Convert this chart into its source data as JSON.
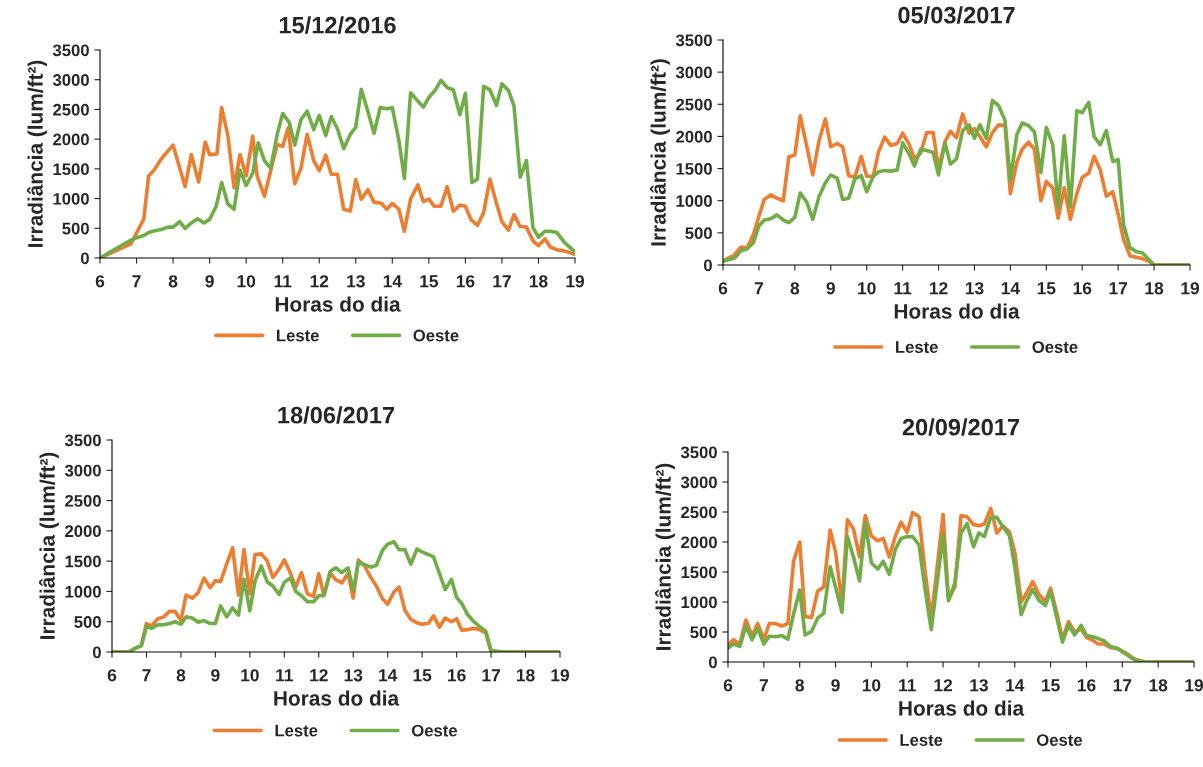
{
  "chart_data": [
    {
      "type": "line",
      "title": "15/12/2016",
      "xlabel": "Horas do dia",
      "ylabel": "Irradiância (lum/ft²)",
      "xlim": [
        6,
        19
      ],
      "xticks": [
        6,
        7,
        8,
        9,
        10,
        11,
        12,
        13,
        14,
        15,
        16,
        17,
        18,
        19
      ],
      "ylim": [
        0,
        3500
      ],
      "yticks": [
        0,
        500,
        1000,
        1500,
        2000,
        2500,
        3000,
        3500
      ],
      "legend": "bottom",
      "grid": false,
      "series": [
        {
          "name": "Leste",
          "color": "#ed7d31",
          "x": [
            6,
            6.85,
            7.2,
            7.33,
            7.47,
            7.68,
            8.0,
            8.33,
            8.5,
            8.7,
            8.88,
            9.0,
            9.2,
            9.33,
            9.5,
            9.67,
            9.83,
            10.0,
            10.18,
            10.3,
            10.5,
            10.7,
            10.85,
            11.0,
            11.15,
            11.33,
            11.5,
            11.67,
            11.85,
            12.0,
            12.18,
            12.33,
            12.5,
            12.67,
            12.85,
            13.0,
            13.15,
            13.33,
            13.5,
            13.7,
            13.85,
            14.0,
            14.18,
            14.33,
            14.5,
            14.7,
            14.85,
            15.0,
            15.15,
            15.33,
            15.5,
            15.67,
            15.85,
            16.0,
            16.15,
            16.33,
            16.5,
            16.67,
            16.85,
            17.0,
            17.18,
            17.33,
            17.5,
            17.67,
            17.85,
            18.0,
            18.18,
            18.33,
            18.5,
            18.7,
            19.0
          ],
          "values": [
            0,
            240,
            660,
            1380,
            1470,
            1670,
            1900,
            1200,
            1740,
            1280,
            1950,
            1740,
            1750,
            2530,
            2060,
            1180,
            1740,
            1380,
            2050,
            1380,
            1040,
            1540,
            1910,
            1880,
            2190,
            1250,
            1510,
            2080,
            1640,
            1470,
            1730,
            1410,
            1410,
            820,
            790,
            1320,
            990,
            1150,
            940,
            920,
            820,
            920,
            820,
            450,
            990,
            1230,
            950,
            990,
            870,
            870,
            1200,
            790,
            890,
            870,
            650,
            550,
            760,
            1330,
            920,
            610,
            470,
            730,
            530,
            520,
            290,
            210,
            320,
            180,
            140,
            120,
            60
          ]
        },
        {
          "name": "Oeste",
          "color": "#70ad47",
          "x": [
            6,
            6.5,
            6.85,
            7.0,
            7.2,
            7.33,
            7.5,
            7.68,
            7.85,
            8.0,
            8.18,
            8.33,
            8.5,
            8.67,
            8.85,
            9.0,
            9.18,
            9.33,
            9.5,
            9.67,
            9.83,
            10.0,
            10.18,
            10.33,
            10.5,
            10.67,
            10.85,
            11.0,
            11.18,
            11.33,
            11.5,
            11.67,
            11.85,
            12.0,
            12.18,
            12.33,
            12.5,
            12.67,
            12.85,
            13.0,
            13.15,
            13.33,
            13.5,
            13.67,
            13.85,
            14.0,
            14.18,
            14.33,
            14.5,
            14.67,
            14.85,
            15.0,
            15.18,
            15.33,
            15.5,
            15.67,
            15.85,
            16.0,
            16.18,
            16.33,
            16.5,
            16.67,
            16.85,
            17.0,
            17.18,
            17.33,
            17.5,
            17.67,
            17.85,
            18.0,
            18.18,
            18.33,
            18.5,
            18.7,
            19.0
          ],
          "values": [
            0,
            180,
            300,
            340,
            380,
            430,
            460,
            480,
            520,
            520,
            610,
            500,
            590,
            660,
            590,
            650,
            870,
            1270,
            910,
            820,
            1480,
            1220,
            1430,
            1940,
            1640,
            1510,
            2080,
            2430,
            2280,
            1900,
            2330,
            2470,
            2160,
            2400,
            2060,
            2380,
            2170,
            1840,
            2080,
            2200,
            2840,
            2470,
            2100,
            2530,
            2510,
            2530,
            1980,
            1340,
            2780,
            2660,
            2540,
            2700,
            2830,
            2990,
            2870,
            2830,
            2410,
            2770,
            1270,
            1330,
            2890,
            2830,
            2570,
            2930,
            2820,
            2560,
            1360,
            1640,
            510,
            350,
            450,
            450,
            430,
            270,
            100
          ]
        }
      ]
    },
    {
      "type": "line",
      "title": "05/03/2017",
      "xlabel": "Horas do dia",
      "ylabel": "Irradiância (lum/ft²)",
      "xlim": [
        6,
        19
      ],
      "xticks": [
        6,
        7,
        8,
        9,
        10,
        11,
        12,
        13,
        14,
        15,
        16,
        17,
        18,
        19
      ],
      "ylim": [
        0,
        3500
      ],
      "yticks": [
        0,
        500,
        1000,
        1500,
        2000,
        2500,
        3000,
        3500
      ],
      "legend": "bottom",
      "grid": false,
      "series": [
        {
          "name": "Leste",
          "color": "#ed7d31",
          "x": [
            6.0,
            6.3,
            6.5,
            6.67,
            6.85,
            7.0,
            7.15,
            7.33,
            7.5,
            7.68,
            7.83,
            8.0,
            8.15,
            8.33,
            8.5,
            8.67,
            8.85,
            9.0,
            9.18,
            9.33,
            9.5,
            9.67,
            9.85,
            10.0,
            10.18,
            10.33,
            10.5,
            10.67,
            10.85,
            11.0,
            11.18,
            11.33,
            11.5,
            11.67,
            11.85,
            12.0,
            12.18,
            12.33,
            12.5,
            12.67,
            12.85,
            13.0,
            13.15,
            13.33,
            13.5,
            13.67,
            13.85,
            14.0,
            14.18,
            14.33,
            14.5,
            14.67,
            14.85,
            15.0,
            15.18,
            15.33,
            15.5,
            15.67,
            15.85,
            16.0,
            16.18,
            16.33,
            16.5,
            16.67,
            16.85,
            17.0,
            17.15,
            17.33,
            17.5,
            17.67,
            17.85,
            18.0,
            19.0
          ],
          "values": [
            60,
            150,
            280,
            260,
            480,
            760,
            1020,
            1090,
            1040,
            1000,
            1680,
            1710,
            2320,
            1850,
            1400,
            1930,
            2270,
            1840,
            1890,
            1840,
            1390,
            1370,
            1690,
            1380,
            1380,
            1760,
            1990,
            1860,
            1890,
            2050,
            1880,
            1650,
            1740,
            2060,
            2060,
            1500,
            1920,
            2080,
            1980,
            2350,
            2050,
            2120,
            2000,
            1840,
            2060,
            2180,
            2170,
            1110,
            1600,
            1800,
            1910,
            1800,
            1000,
            1300,
            1200,
            730,
            1200,
            710,
            1110,
            1360,
            1430,
            1690,
            1480,
            1070,
            1140,
            790,
            400,
            140,
            120,
            100,
            60,
            0,
            0
          ]
        },
        {
          "name": "Oeste",
          "color": "#70ad47",
          "x": [
            6.0,
            6.33,
            6.5,
            6.67,
            6.85,
            7.0,
            7.15,
            7.33,
            7.5,
            7.68,
            7.83,
            8.0,
            8.15,
            8.33,
            8.5,
            8.67,
            8.85,
            9.0,
            9.18,
            9.33,
            9.5,
            9.67,
            9.85,
            10.0,
            10.18,
            10.33,
            10.5,
            10.67,
            10.85,
            11.0,
            11.18,
            11.33,
            11.5,
            11.67,
            11.85,
            12.0,
            12.18,
            12.33,
            12.5,
            12.67,
            12.85,
            13.0,
            13.15,
            13.33,
            13.5,
            13.67,
            13.85,
            14.0,
            14.18,
            14.33,
            14.5,
            14.67,
            14.85,
            15.0,
            15.18,
            15.33,
            15.5,
            15.67,
            15.85,
            16.0,
            16.18,
            16.33,
            16.5,
            16.67,
            16.85,
            17.0,
            17.15,
            17.33,
            17.5,
            17.67,
            17.85,
            18.0,
            19.0
          ],
          "values": [
            60,
            110,
            220,
            250,
            350,
            610,
            700,
            720,
            780,
            700,
            660,
            740,
            1120,
            980,
            710,
            1060,
            1280,
            1400,
            1350,
            1020,
            1040,
            1340,
            1390,
            1140,
            1380,
            1450,
            1470,
            1460,
            1480,
            1900,
            1730,
            1540,
            1800,
            1780,
            1750,
            1400,
            1900,
            1570,
            1650,
            2090,
            2180,
            1970,
            2180,
            1970,
            2560,
            2480,
            2250,
            1310,
            2030,
            2210,
            2170,
            2070,
            1440,
            2140,
            1870,
            900,
            2010,
            900,
            2400,
            2370,
            2530,
            2000,
            1870,
            2090,
            1610,
            1640,
            630,
            270,
            210,
            190,
            90,
            0,
            0
          ]
        }
      ]
    },
    {
      "type": "line",
      "title": "18/06/2017",
      "xlabel": "Horas do dia",
      "ylabel": "Irradiância (lum/ft²)",
      "xlim": [
        6,
        19
      ],
      "xticks": [
        6,
        7,
        8,
        9,
        10,
        11,
        12,
        13,
        14,
        15,
        16,
        17,
        18,
        19
      ],
      "ylim": [
        0,
        3500
      ],
      "yticks": [
        0,
        500,
        1000,
        1500,
        2000,
        2500,
        3000,
        3500
      ],
      "legend": "bottom",
      "grid": false,
      "series": [
        {
          "name": "Leste",
          "color": "#ed7d31",
          "x": [
            6.0,
            6.5,
            6.67,
            6.85,
            7.0,
            7.15,
            7.33,
            7.5,
            7.67,
            7.83,
            8.0,
            8.15,
            8.33,
            8.5,
            8.67,
            8.85,
            9.0,
            9.15,
            9.33,
            9.5,
            9.67,
            9.83,
            10.0,
            10.15,
            10.33,
            10.5,
            10.67,
            10.85,
            11.0,
            11.18,
            11.33,
            11.5,
            11.67,
            11.85,
            12.0,
            12.15,
            12.33,
            12.5,
            12.67,
            12.85,
            13.0,
            13.15,
            13.33,
            13.5,
            13.67,
            13.85,
            14.0,
            14.18,
            14.33,
            14.5,
            14.67,
            14.85,
            15.0,
            15.18,
            15.33,
            15.5,
            15.67,
            15.85,
            16.0,
            16.15,
            16.33,
            16.5,
            16.67,
            16.85,
            17.0,
            19.0
          ],
          "values": [
            0,
            0,
            60,
            110,
            470,
            430,
            550,
            580,
            670,
            670,
            520,
            940,
            890,
            980,
            1220,
            1060,
            1180,
            1160,
            1460,
            1720,
            940,
            1690,
            960,
            1610,
            1620,
            1510,
            1230,
            1370,
            1520,
            1300,
            1070,
            1310,
            960,
            920,
            1290,
            940,
            1300,
            1190,
            1140,
            1300,
            890,
            1520,
            1420,
            1240,
            1090,
            880,
            790,
            990,
            1070,
            690,
            540,
            480,
            460,
            470,
            600,
            410,
            560,
            500,
            550,
            360,
            370,
            390,
            370,
            310,
            0,
            0
          ]
        },
        {
          "name": "Oeste",
          "color": "#70ad47",
          "x": [
            6.0,
            6.5,
            6.67,
            6.85,
            7.0,
            7.15,
            7.33,
            7.5,
            7.67,
            7.83,
            8.0,
            8.15,
            8.33,
            8.5,
            8.67,
            8.85,
            9.0,
            9.15,
            9.33,
            9.5,
            9.67,
            9.83,
            10.0,
            10.15,
            10.33,
            10.5,
            10.67,
            10.85,
            11.0,
            11.18,
            11.33,
            11.5,
            11.67,
            11.85,
            12.0,
            12.15,
            12.33,
            12.5,
            12.67,
            12.85,
            13.0,
            13.15,
            13.33,
            13.5,
            13.67,
            13.85,
            14.0,
            14.18,
            14.33,
            14.5,
            14.67,
            14.85,
            15.0,
            15.18,
            15.33,
            15.5,
            15.67,
            15.85,
            16.0,
            16.15,
            16.33,
            16.5,
            16.67,
            16.85,
            17.0,
            17.33,
            19.0
          ],
          "values": [
            0,
            0,
            60,
            100,
            420,
            390,
            450,
            450,
            470,
            500,
            460,
            580,
            560,
            490,
            520,
            470,
            470,
            760,
            580,
            730,
            610,
            1200,
            680,
            1170,
            1420,
            1160,
            1090,
            950,
            1150,
            1220,
            1000,
            930,
            830,
            830,
            930,
            930,
            1330,
            1390,
            1310,
            1390,
            1020,
            1490,
            1440,
            1400,
            1430,
            1680,
            1780,
            1820,
            1690,
            1690,
            1450,
            1700,
            1650,
            1610,
            1570,
            1300,
            1030,
            1200,
            900,
            800,
            610,
            500,
            420,
            340,
            30,
            0,
            0
          ]
        }
      ]
    },
    {
      "type": "line",
      "title": "20/09/2017",
      "xlabel": "Horas do dia",
      "ylabel": "Irradiância (lum/ft²)",
      "xlim": [
        6,
        19
      ],
      "xticks": [
        6,
        7,
        8,
        9,
        10,
        11,
        12,
        13,
        14,
        15,
        16,
        17,
        18,
        19
      ],
      "ylim": [
        0,
        3500
      ],
      "yticks": [
        0,
        500,
        1000,
        1500,
        2000,
        2500,
        3000,
        3500
      ],
      "legend": "bottom",
      "grid": false,
      "series": [
        {
          "name": "Leste",
          "color": "#ed7d31",
          "x": [
            6.0,
            6.15,
            6.33,
            6.5,
            6.67,
            6.83,
            7.0,
            7.15,
            7.33,
            7.5,
            7.67,
            7.83,
            8.0,
            8.15,
            8.33,
            8.5,
            8.67,
            8.85,
            9.0,
            9.18,
            9.33,
            9.5,
            9.67,
            9.83,
            10.0,
            10.18,
            10.33,
            10.5,
            10.67,
            10.83,
            11.0,
            11.15,
            11.33,
            11.5,
            11.67,
            11.85,
            12.0,
            12.15,
            12.33,
            12.5,
            12.67,
            12.85,
            13.0,
            13.15,
            13.33,
            13.5,
            13.67,
            13.85,
            14.0,
            14.18,
            14.33,
            14.5,
            14.67,
            14.85,
            15.0,
            15.18,
            15.33,
            15.5,
            15.67,
            15.85,
            16.0,
            16.18,
            16.33,
            16.5,
            16.67,
            16.85,
            17.0,
            17.18,
            17.33,
            17.5,
            17.67,
            19.0
          ],
          "values": [
            280,
            370,
            300,
            700,
            430,
            640,
            370,
            640,
            640,
            600,
            640,
            1680,
            2000,
            760,
            740,
            1180,
            1250,
            2200,
            1840,
            960,
            2370,
            2220,
            1750,
            2440,
            2100,
            2020,
            2060,
            1750,
            2100,
            2330,
            2160,
            2490,
            2420,
            1500,
            720,
            1660,
            2460,
            1050,
            1250,
            2440,
            2420,
            2290,
            2270,
            2300,
            2560,
            2150,
            2270,
            2170,
            1830,
            1000,
            1150,
            1340,
            1130,
            1010,
            1230,
            800,
            380,
            670,
            500,
            550,
            410,
            360,
            300,
            300,
            240,
            230,
            180,
            120,
            50,
            20,
            0,
            0
          ]
        },
        {
          "name": "Oeste",
          "color": "#70ad47",
          "x": [
            6.0,
            6.15,
            6.33,
            6.5,
            6.67,
            6.83,
            7.0,
            7.15,
            7.33,
            7.5,
            7.67,
            7.83,
            8.0,
            8.15,
            8.33,
            8.5,
            8.67,
            8.85,
            9.0,
            9.18,
            9.33,
            9.5,
            9.67,
            9.83,
            10.0,
            10.18,
            10.33,
            10.5,
            10.67,
            10.83,
            11.0,
            11.15,
            11.33,
            11.5,
            11.67,
            11.85,
            12.0,
            12.15,
            12.33,
            12.5,
            12.67,
            12.85,
            13.0,
            13.15,
            13.33,
            13.5,
            13.67,
            13.85,
            14.0,
            14.18,
            14.33,
            14.5,
            14.67,
            14.85,
            15.0,
            15.18,
            15.33,
            15.5,
            15.67,
            15.85,
            16.0,
            16.18,
            16.33,
            16.5,
            16.67,
            16.85,
            17.0,
            17.18,
            17.33,
            17.5,
            17.67,
            19.0
          ],
          "values": [
            230,
            300,
            260,
            600,
            370,
            560,
            300,
            430,
            420,
            440,
            380,
            800,
            1200,
            450,
            510,
            730,
            810,
            1590,
            1250,
            830,
            2090,
            1750,
            1350,
            2330,
            1650,
            1550,
            1680,
            1460,
            1880,
            2060,
            2090,
            2090,
            1950,
            1200,
            540,
            1400,
            2120,
            1020,
            1320,
            2150,
            2310,
            1920,
            2150,
            2090,
            2410,
            2410,
            2250,
            2110,
            1590,
            790,
            1020,
            1210,
            1030,
            940,
            1180,
            720,
            330,
            620,
            450,
            610,
            440,
            420,
            390,
            350,
            260,
            230,
            170,
            100,
            40,
            10,
            0,
            0
          ]
        }
      ]
    }
  ]
}
